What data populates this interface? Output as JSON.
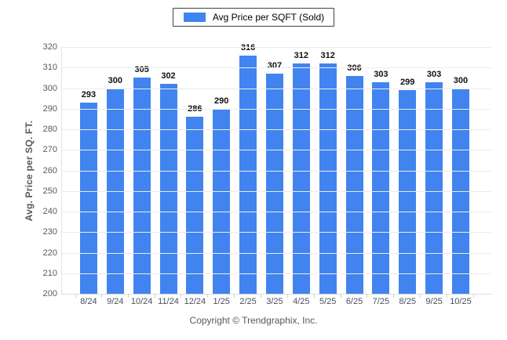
{
  "window": {
    "background_color": "#ffffff"
  },
  "legend": {
    "label": "Avg Price per SQFT (Sold)",
    "swatch_color": "#4184f0"
  },
  "y_axis": {
    "title": "Avg. Price per SQ. FT."
  },
  "footer": {
    "text": "Copyright © Trendgraphix, Inc."
  },
  "chart_data": {
    "type": "bar",
    "title": "",
    "series_name": "Avg Price per SQFT (Sold)",
    "categories": [
      "8/24",
      "9/24",
      "10/24",
      "11/24",
      "12/24",
      "1/25",
      "2/25",
      "3/25",
      "4/25",
      "5/25",
      "6/25",
      "7/25",
      "8/25",
      "9/25",
      "10/25"
    ],
    "values": [
      293,
      300,
      305,
      302,
      286,
      290,
      316,
      307,
      312,
      312,
      306,
      303,
      299,
      303,
      300
    ],
    "xlabel": "",
    "ylabel": "Avg. Price per SQ. FT.",
    "ylim": [
      200,
      320
    ],
    "ytick_step": 10,
    "grid": true,
    "legend_position": "top-center",
    "bar_color": "#4184f0",
    "gridline_color": "#ececec"
  }
}
